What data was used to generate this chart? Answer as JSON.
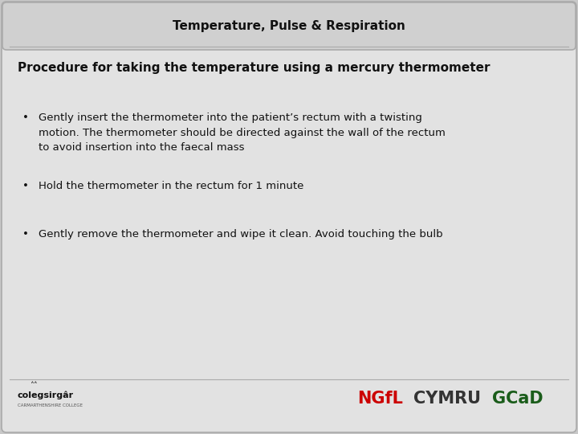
{
  "title": "Temperature, Pulse & Respiration",
  "subtitle": "Procedure for taking the temperature using a mercury thermometer",
  "bullets": [
    "Gently insert the thermometer into the patient’s rectum with a twisting\nmotion. The thermometer should be directed against the wall of the rectum\nto avoid insertion into the faecal mass",
    "Hold the thermometer in the rectum for 1 minute",
    "Gently remove the thermometer and wipe it clean. Avoid touching the bulb"
  ],
  "bg_color": "#c8c8c8",
  "content_bg": "#e2e2e2",
  "header_bg": "#d0d0d0",
  "title_fontsize": 11,
  "subtitle_fontsize": 11,
  "bullet_fontsize": 9.5,
  "footer_text_left": "colegsirgâr",
  "footer_ngfl_color": "#cc0000",
  "footer_cymru_color": "#333333",
  "footer_gcad_color": "#1a5c1a",
  "border_color": "#aaaaaa",
  "text_color": "#111111"
}
